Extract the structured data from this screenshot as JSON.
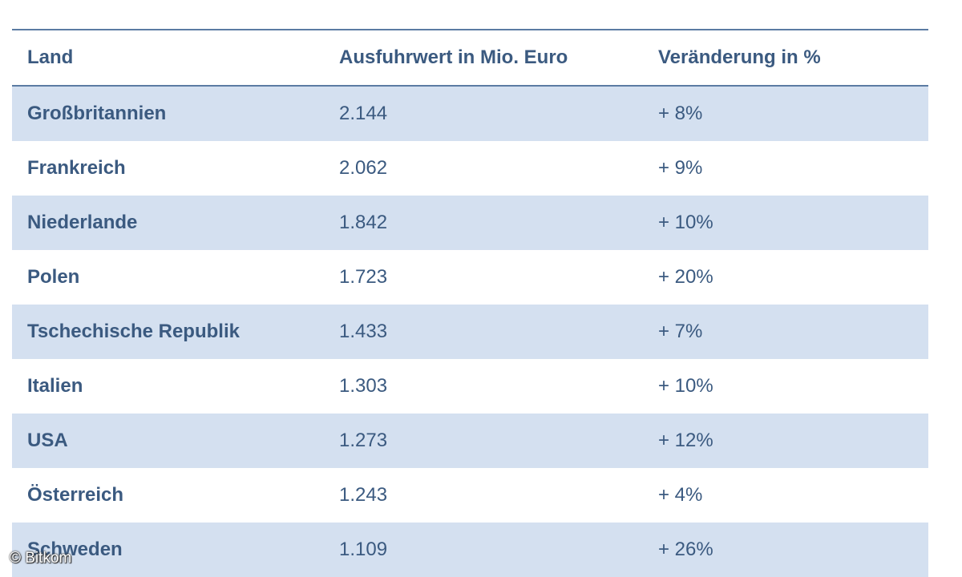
{
  "table": {
    "headers": [
      "Land",
      "Ausfuhrwert in Mio. Euro",
      "Veränderung in %"
    ],
    "rows": [
      [
        "Großbritannien",
        "2.144",
        "+ 8%"
      ],
      [
        "Frankreich",
        "2.062",
        "+ 9%"
      ],
      [
        "Niederlande",
        "1.842",
        "+ 10%"
      ],
      [
        "Polen",
        "1.723",
        "+ 20%"
      ],
      [
        "Tschechische Republik",
        "1.433",
        "+ 7%"
      ],
      [
        "Italien",
        "1.303",
        "+ 10%"
      ],
      [
        "USA",
        "1.273",
        "+ 12%"
      ],
      [
        "Österreich",
        "1.243",
        "+ 4%"
      ],
      [
        "Schweden",
        "1.109",
        "+ 26%"
      ]
    ]
  },
  "credit": "© Bitkom",
  "colors": {
    "text": "#3b5a80",
    "rule": "#5b7ba3",
    "shaded_row": "#d4e0f0"
  }
}
